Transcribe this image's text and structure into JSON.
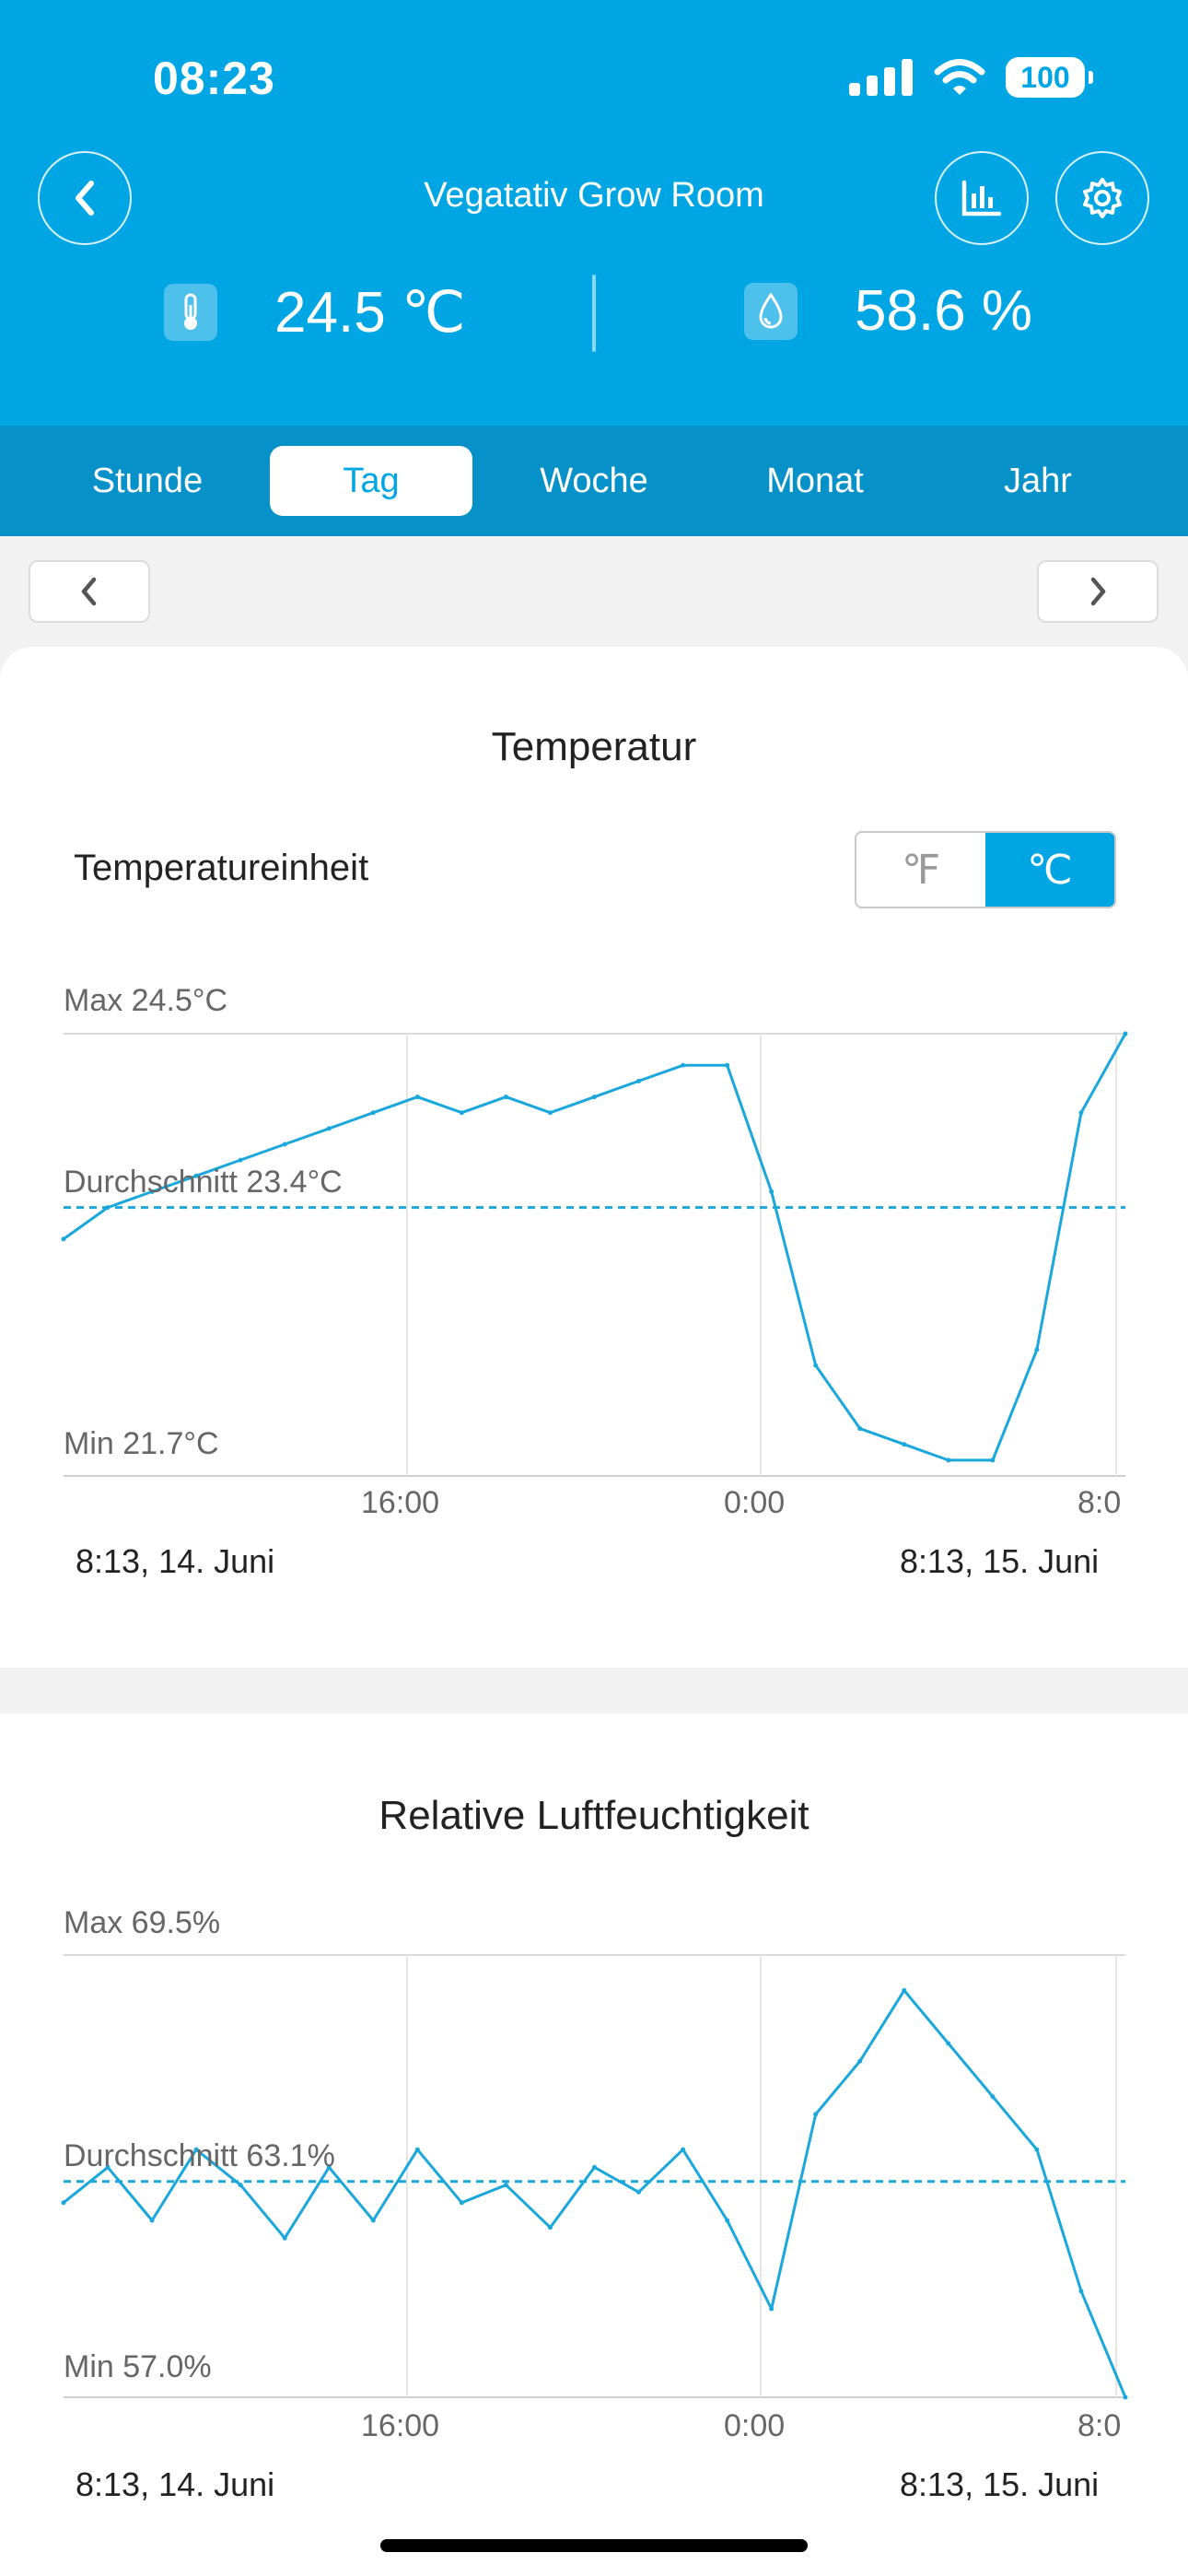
{
  "status": {
    "time": "08:23",
    "battery": "100"
  },
  "header": {
    "title": "Vegatativ Grow Room",
    "temperature": "24.5 ℃",
    "humidity": "58.6 %"
  },
  "tabs": [
    {
      "label": "Stunde"
    },
    {
      "label": "Tag",
      "active": true
    },
    {
      "label": "Woche"
    },
    {
      "label": "Monat"
    },
    {
      "label": "Jahr"
    }
  ],
  "temperature_card": {
    "title": "Temperatur",
    "unit_label": "Temperatureinheit",
    "unit_f": "℉",
    "unit_c": "℃",
    "max_label": "Max 24.5°C",
    "avg_label": "Durchschnitt 23.4°C",
    "min_label": "Min 21.7°C",
    "ticks": [
      "16:00",
      "0:00",
      "8:0"
    ],
    "date_start": "8:13,  14. Juni",
    "date_end": "8:13,  15. Juni"
  },
  "humidity_card": {
    "title": "Relative Luftfeuchtigkeit",
    "max_label": "Max 69.5%",
    "avg_label": "Durchschnitt 63.1%",
    "min_label": "Min 57.0%",
    "ticks": [
      "16:00",
      "0:00",
      "8:0"
    ],
    "date_start": "8:13,  14. Juni",
    "date_end": "8:13,  15. Juni"
  },
  "colors": {
    "primary": "#00a6e4",
    "tab_bar": "#0691c9",
    "line": "#1aa7dc"
  },
  "chart_data": [
    {
      "type": "line",
      "title": "Temperatur",
      "x_unit": "hours since 8:13 (14. Juni)",
      "x_ticks": [
        "16:00",
        "0:00",
        "8:0"
      ],
      "ylim": [
        21.7,
        24.5
      ],
      "average": 23.4,
      "series": [
        {
          "x": [
            0,
            1,
            2,
            3,
            4,
            5,
            6,
            7,
            8,
            9,
            10,
            11,
            12,
            13,
            14,
            15,
            16,
            17,
            18,
            19,
            20,
            21,
            22,
            23,
            24
          ],
          "values": [
            23.2,
            23.4,
            23.5,
            23.6,
            23.7,
            23.8,
            23.9,
            24.0,
            24.1,
            24.0,
            24.1,
            24.0,
            24.1,
            24.2,
            24.3,
            24.3,
            23.5,
            22.4,
            22.0,
            21.9,
            21.8,
            21.8,
            22.5,
            24.0,
            24.5
          ]
        }
      ]
    },
    {
      "type": "line",
      "title": "Relative Luftfeuchtigkeit",
      "x_unit": "hours since 8:13 (14. Juni)",
      "x_ticks": [
        "16:00",
        "0:00",
        "8:0"
      ],
      "ylim": [
        57.0,
        69.5
      ],
      "average": 63.1,
      "series": [
        {
          "x": [
            0,
            1,
            2,
            3,
            4,
            5,
            6,
            7,
            8,
            9,
            10,
            11,
            12,
            13,
            14,
            15,
            16,
            17,
            18,
            19,
            20,
            21,
            22,
            23,
            24
          ],
          "values": [
            62.5,
            63.5,
            62.0,
            64.0,
            63.0,
            61.5,
            63.5,
            62.0,
            64.0,
            62.5,
            63.0,
            61.8,
            63.5,
            62.8,
            64.0,
            62.0,
            59.5,
            65.0,
            66.5,
            68.5,
            67.0,
            65.5,
            64.0,
            60.0,
            57.0
          ]
        }
      ]
    }
  ]
}
